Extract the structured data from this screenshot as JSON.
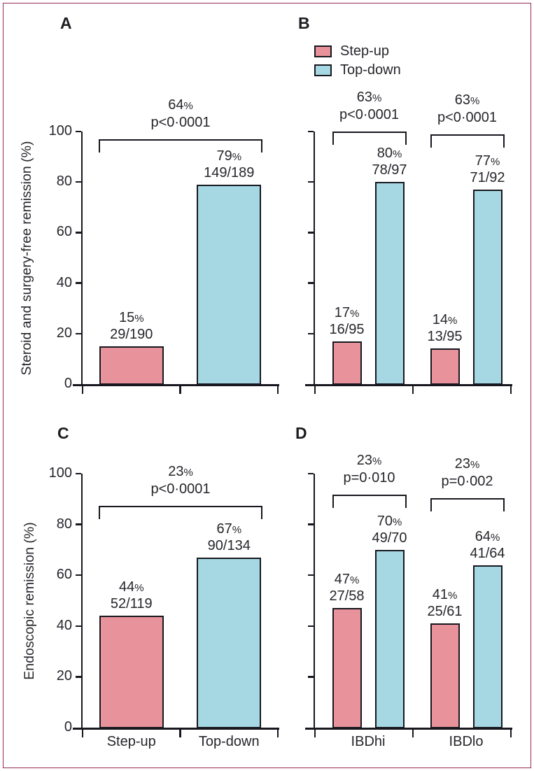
{
  "figure": {
    "background": "#ffffff",
    "frame_border_color": "#962a56"
  },
  "legend": {
    "items": [
      {
        "label": "Step-up",
        "color": "#e8939c"
      },
      {
        "label": "Top-down",
        "color": "#a5d8e3"
      }
    ]
  },
  "colors": {
    "step_up_fill": "#e8939c",
    "top_down_fill": "#a5d8e3",
    "outline": "#17171f",
    "text": "#26262c",
    "frame_border": "#962a56"
  },
  "chart_data": {
    "type": "bar",
    "ylim": [
      0,
      100
    ],
    "yticks": [
      0,
      20,
      40,
      60,
      80,
      100
    ],
    "grid": false,
    "legend_position": "top-right-panel-B",
    "series": [
      {
        "name": "Step-up",
        "color": "#e8939c"
      },
      {
        "name": "Top-down",
        "color": "#a5d8e3"
      }
    ],
    "panels": [
      {
        "id": "A",
        "ylabel": "Steroid and surgery-free remission (%)",
        "show_ytick_labels": true,
        "show_xlabels": false,
        "groups": [
          {
            "label": "Step-up",
            "bars": [
              {
                "series": "Step-up",
                "value": 15,
                "count": "29/190"
              }
            ]
          },
          {
            "label": "Top-down",
            "bars": [
              {
                "series": "Top-down",
                "value": 79,
                "count": "149/189"
              }
            ]
          }
        ],
        "comparisons": [
          {
            "label": "64",
            "p": "p<0·0001",
            "span": "panel"
          }
        ]
      },
      {
        "id": "B",
        "ylabel": "",
        "show_legend": true,
        "show_ytick_labels": false,
        "show_xlabels": false,
        "groups": [
          {
            "label": "IBDhi",
            "bars": [
              {
                "series": "Step-up",
                "value": 17,
                "count": "16/95"
              },
              {
                "series": "Top-down",
                "value": 80,
                "count": "78/97"
              }
            ]
          },
          {
            "label": "IBDlo",
            "bars": [
              {
                "series": "Step-up",
                "value": 14,
                "count": "13/95"
              },
              {
                "series": "Top-down",
                "value": 77,
                "count": "71/92"
              }
            ]
          }
        ],
        "comparisons": [
          {
            "label": "63",
            "p": "p<0·0001",
            "group": 0
          },
          {
            "label": "63",
            "p": "p<0·0001",
            "group": 1
          }
        ]
      },
      {
        "id": "C",
        "ylabel": "Endoscopic remission (%)",
        "show_ytick_labels": true,
        "show_xlabels": true,
        "groups": [
          {
            "label": "Step-up",
            "bars": [
              {
                "series": "Step-up",
                "value": 44,
                "count": "52/119"
              }
            ]
          },
          {
            "label": "Top-down",
            "bars": [
              {
                "series": "Top-down",
                "value": 67,
                "count": "90/134"
              }
            ]
          }
        ],
        "comparisons": [
          {
            "label": "23",
            "p": "p<0·0001",
            "span": "panel"
          }
        ]
      },
      {
        "id": "D",
        "ylabel": "",
        "show_ytick_labels": false,
        "show_xlabels": true,
        "groups": [
          {
            "label": "IBDhi",
            "bars": [
              {
                "series": "Step-up",
                "value": 47,
                "count": "27/58"
              },
              {
                "series": "Top-down",
                "value": 70,
                "count": "49/70"
              }
            ]
          },
          {
            "label": "IBDlo",
            "bars": [
              {
                "series": "Step-up",
                "value": 41,
                "count": "25/61"
              },
              {
                "series": "Top-down",
                "value": 64,
                "count": "41/64"
              }
            ]
          }
        ],
        "comparisons": [
          {
            "label": "23",
            "p": "p=0·010",
            "group": 0
          },
          {
            "label": "23",
            "p": "p=0·002",
            "group": 1
          }
        ]
      }
    ]
  }
}
